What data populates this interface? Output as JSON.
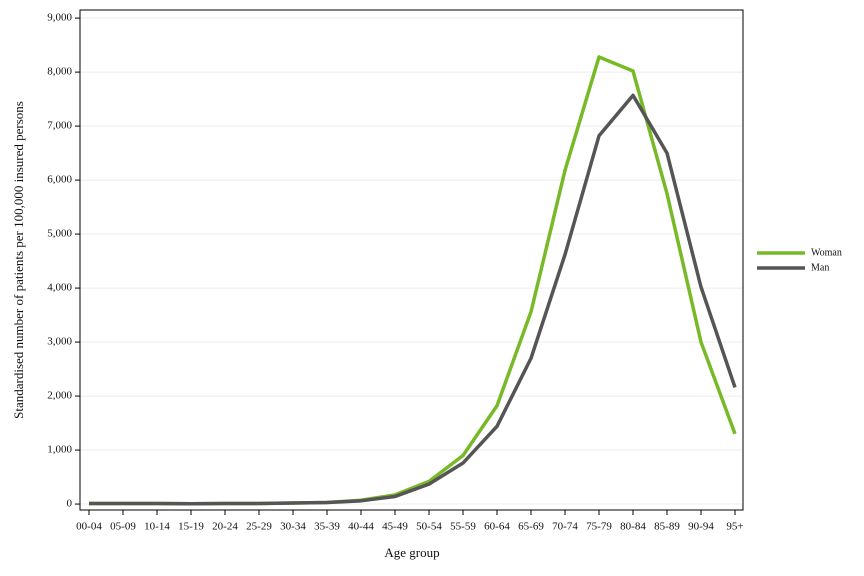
{
  "chart_data": {
    "type": "line",
    "x_label": "Age group",
    "y_label": "Standardised number of patients per 100,000 insured persons",
    "categories": [
      "00-04",
      "05-09",
      "10-14",
      "15-19",
      "20-24",
      "25-29",
      "30-34",
      "35-39",
      "40-44",
      "45-49",
      "50-54",
      "55-59",
      "60-64",
      "65-69",
      "70-74",
      "75-79",
      "80-84",
      "85-89",
      "90-94",
      "95+"
    ],
    "series": [
      {
        "name": "Woman",
        "color": "#78b928",
        "values": [
          10,
          10,
          10,
          5,
          10,
          10,
          20,
          30,
          70,
          170,
          420,
          900,
          1820,
          3560,
          6180,
          8280,
          8020,
          5750,
          3000,
          1300
        ]
      },
      {
        "name": "Man",
        "color": "#555555",
        "values": [
          10,
          10,
          10,
          5,
          10,
          10,
          20,
          30,
          60,
          140,
          370,
          760,
          1440,
          2700,
          4620,
          6820,
          7570,
          6500,
          4020,
          2160
        ]
      }
    ],
    "ylim": [
      -110,
      9150
    ],
    "yticks": [
      0,
      {
        "value": 1000,
        "label": "1,000"
      },
      {
        "value": 2000,
        "label": "2,000"
      },
      {
        "value": 3000,
        "label": "3,000"
      },
      {
        "value": 4000,
        "label": "4,000"
      },
      {
        "value": 5000,
        "label": "5,000"
      },
      {
        "value": 6000,
        "label": "6,000"
      },
      {
        "value": 7000,
        "label": "7,000"
      },
      {
        "value": 8000,
        "label": "8,000"
      },
      {
        "value": 9000,
        "label": "9,000"
      }
    ],
    "grid": true,
    "legend": "right"
  }
}
